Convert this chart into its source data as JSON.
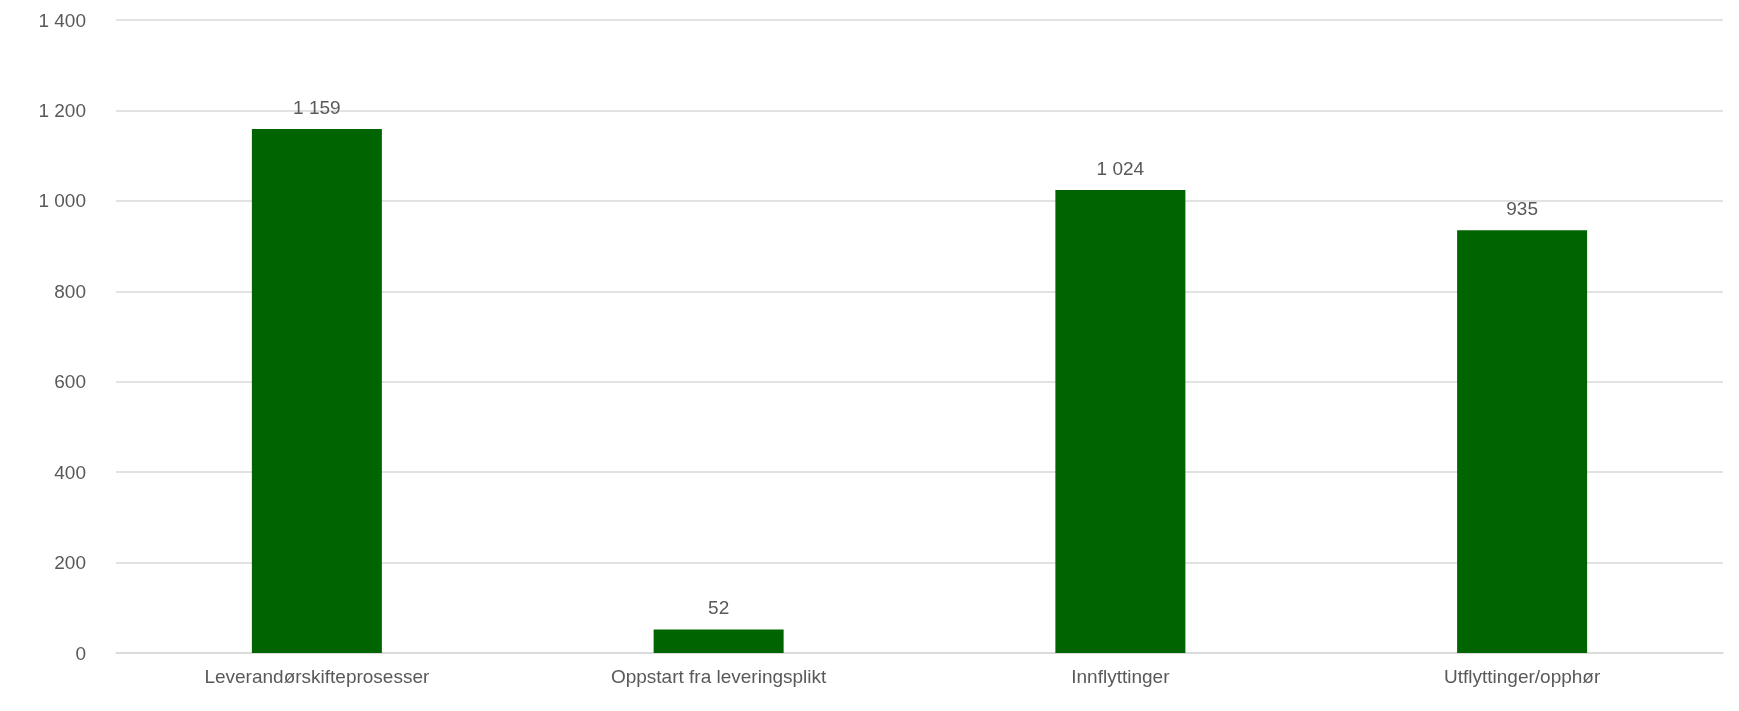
{
  "chart_data": {
    "type": "bar",
    "categories": [
      "Leverandørskifteprosesser",
      "Oppstart fra leveringsplikt",
      "Innflyttinger",
      "Utflyttinger/opphør"
    ],
    "values": [
      1159,
      52,
      1024,
      935
    ],
    "value_labels": [
      "1 159",
      "52",
      "1 024",
      "935"
    ],
    "color": "#006400",
    "ylim": [
      0,
      1400
    ],
    "yticks": [
      0,
      200,
      400,
      600,
      800,
      {
        "value": 1000,
        "label": "1 000"
      },
      {
        "value": 1200,
        "label": "1 200"
      },
      {
        "value": 1400,
        "label": "1 400"
      }
    ],
    "grid": true
  }
}
